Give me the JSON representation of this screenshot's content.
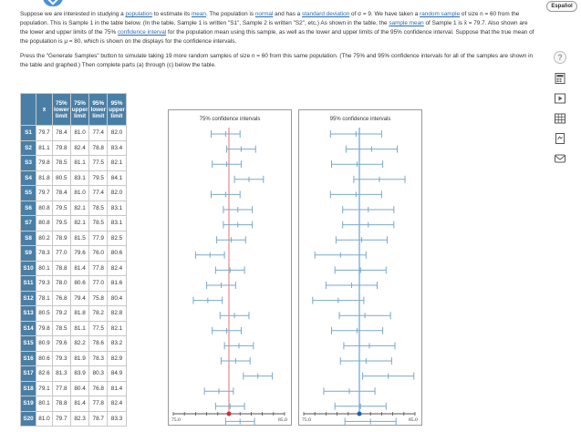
{
  "header": {
    "lang_button": "Español"
  },
  "problem": {
    "p1_a": "Suppose we are interested in studying a ",
    "p1_link1": "population",
    "p1_b": " to estimate its ",
    "p1_link2": "mean",
    "p1_c": ". The population is ",
    "p1_link3": "normal",
    "p1_d": " and has a ",
    "p1_link4": "standard deviation",
    "p1_e": " of σ = 9. We have taken a ",
    "p1_link5": "random sample",
    "p1_f": " of size n = 60 from the population. This is Sample 1 in the table below. (In the table, Sample 1 is written \"S1\", Sample 2 is written \"S2\", etc.) As shown in the table, the ",
    "p1_link6": "sample mean",
    "p1_g": " of Sample 1 is x̄ = 79.7. Also shown are the lower and upper limits of the 75% ",
    "p1_link7": "confidence interval",
    "p1_h": " for the population mean using this sample, as well as the lower and upper limits of the 95% confidence interval. Suppose that the true mean of the population is μ = 80, which is shown on the displays for the confidence intervals.",
    "p2": "Press the \"Generate Samples\" button to simulate taking 19 more random samples of size n = 60 from this same population. (The 75% and 95% confidence intervals for all of the samples are shown in the table and graphed.) Then complete parts (a) through (c) below the table."
  },
  "sidebar": {
    "help_icon": "question-mark-icon",
    "icons": [
      "calculator-icon",
      "video-icon",
      "grid-icon",
      "document-icon",
      "email-icon"
    ]
  },
  "table": {
    "headers": [
      "x̄",
      "75% lower limit",
      "75% upper limit",
      "95% lower limit",
      "95% upper limit"
    ],
    "rows": [
      {
        "label": "S1",
        "values": [
          "79.7",
          "78.4",
          "81.0",
          "77.4",
          "82.0"
        ]
      },
      {
        "label": "S2",
        "values": [
          "81.1",
          "79.8",
          "82.4",
          "78.8",
          "83.4"
        ]
      },
      {
        "label": "S3",
        "values": [
          "79.8",
          "78.5",
          "81.1",
          "77.5",
          "82.1"
        ]
      },
      {
        "label": "S4",
        "values": [
          "81.8",
          "80.5",
          "83.1",
          "79.5",
          "84.1"
        ]
      },
      {
        "label": "S5",
        "values": [
          "79.7",
          "78.4",
          "81.0",
          "77.4",
          "82.0"
        ]
      },
      {
        "label": "S6",
        "values": [
          "80.8",
          "79.5",
          "82.1",
          "78.5",
          "83.1"
        ]
      },
      {
        "label": "S7",
        "values": [
          "80.8",
          "79.5",
          "82.1",
          "78.5",
          "83.1"
        ]
      },
      {
        "label": "S8",
        "values": [
          "80.2",
          "78.9",
          "81.5",
          "77.9",
          "82.5"
        ]
      },
      {
        "label": "S9",
        "values": [
          "78.3",
          "77.0",
          "79.6",
          "76.0",
          "80.6"
        ]
      },
      {
        "label": "S10",
        "values": [
          "80.1",
          "78.8",
          "81.4",
          "77.8",
          "82.4"
        ]
      },
      {
        "label": "S11",
        "values": [
          "79.3",
          "78.0",
          "80.6",
          "77.0",
          "81.6"
        ]
      },
      {
        "label": "S12",
        "values": [
          "78.1",
          "76.8",
          "79.4",
          "75.8",
          "80.4"
        ]
      },
      {
        "label": "S13",
        "values": [
          "80.5",
          "79.2",
          "81.8",
          "78.2",
          "82.8"
        ]
      },
      {
        "label": "S14",
        "values": [
          "79.8",
          "78.5",
          "81.1",
          "77.5",
          "82.1"
        ]
      },
      {
        "label": "S15",
        "values": [
          "80.9",
          "79.6",
          "82.2",
          "78.6",
          "83.2"
        ]
      },
      {
        "label": "S16",
        "values": [
          "80.6",
          "79.3",
          "81.9",
          "78.3",
          "82.9"
        ]
      },
      {
        "label": "S17",
        "values": [
          "82.6",
          "81.3",
          "83.9",
          "80.3",
          "84.9"
        ]
      },
      {
        "label": "S18",
        "values": [
          "79.1",
          "77.8",
          "80.4",
          "76.8",
          "81.4"
        ]
      },
      {
        "label": "S19",
        "values": [
          "80.1",
          "78.8",
          "81.4",
          "77.8",
          "82.4"
        ]
      },
      {
        "label": "S20",
        "values": [
          "81.0",
          "79.7",
          "82.3",
          "78.7",
          "83.3"
        ]
      }
    ]
  },
  "chart_data": [
    {
      "type": "interval",
      "title": "75% confidence intervals",
      "xlim": [
        75.0,
        85.0
      ],
      "tick_labels": [
        "75.0",
        "85.0"
      ],
      "true_mean": 80,
      "reference_line_color": "#e57373",
      "marker_color": "#d32f2f",
      "interval_color": "#7aa9c9",
      "lower": [
        78.4,
        79.8,
        78.5,
        80.5,
        78.4,
        79.5,
        79.5,
        78.9,
        77.0,
        78.8,
        78.0,
        76.8,
        79.2,
        78.5,
        79.6,
        79.3,
        81.3,
        77.8,
        78.8,
        79.7
      ],
      "upper": [
        81.0,
        82.4,
        81.1,
        83.1,
        81.0,
        82.1,
        82.1,
        81.5,
        79.6,
        81.4,
        80.6,
        79.4,
        81.8,
        81.1,
        82.2,
        81.9,
        83.9,
        80.4,
        81.4,
        82.3
      ]
    },
    {
      "type": "interval",
      "title": "95% confidence intervals",
      "xlim": [
        75.0,
        85.0
      ],
      "tick_labels": [
        "75.0",
        "85.0"
      ],
      "true_mean": 80,
      "reference_line_color": "#4a90d9",
      "marker_color": "#1f5fa8",
      "interval_color": "#7aa9c9",
      "lower": [
        77.4,
        78.8,
        77.5,
        79.5,
        77.4,
        78.5,
        78.5,
        77.9,
        76.0,
        77.8,
        77.0,
        75.8,
        78.2,
        77.5,
        78.6,
        78.3,
        80.3,
        76.8,
        77.8,
        78.7
      ],
      "upper": [
        82.0,
        83.4,
        82.1,
        84.1,
        82.0,
        83.1,
        83.1,
        82.5,
        80.6,
        82.4,
        81.6,
        80.4,
        82.8,
        82.1,
        83.2,
        82.9,
        84.9,
        81.4,
        82.4,
        83.3
      ]
    }
  ]
}
